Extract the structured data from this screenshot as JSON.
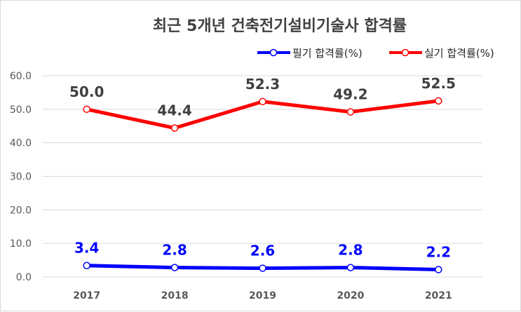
{
  "chart_data": {
    "type": "line",
    "title": "최근 5개년 건축전기설비기술사 합격률",
    "categories": [
      "2017",
      "2018",
      "2019",
      "2020",
      "2021"
    ],
    "ylim": [
      0,
      60
    ],
    "yticks": [
      "0.0",
      "10.0",
      "20.0",
      "30.0",
      "40.0",
      "50.0",
      "60.0"
    ],
    "grid": true,
    "legend_position": "top-right",
    "series": [
      {
        "name": "필기 합격률(%)",
        "color": "#0000ff",
        "values": [
          3.4,
          2.8,
          2.6,
          2.8,
          2.2
        ],
        "labels": [
          "3.4",
          "2.8",
          "2.6",
          "2.8",
          "2.2"
        ]
      },
      {
        "name": "실기 합격률(%)",
        "color": "#ff0000",
        "values": [
          50.0,
          44.4,
          52.3,
          49.2,
          52.5
        ],
        "labels": [
          "50.0",
          "44.4",
          "52.3",
          "49.2",
          "52.5"
        ]
      }
    ]
  }
}
